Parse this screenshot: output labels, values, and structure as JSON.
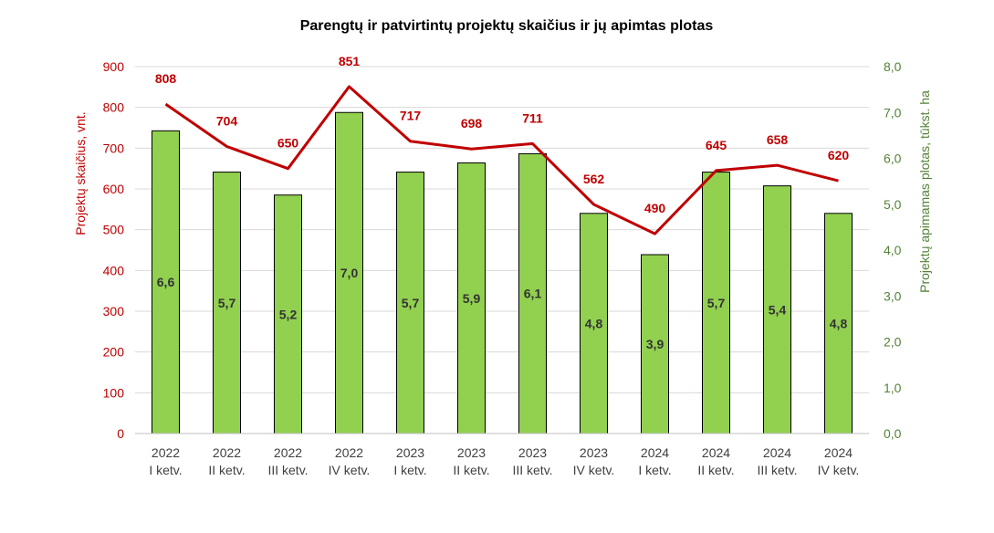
{
  "chart_data": {
    "type": "bar+line",
    "title": "Parengtų ir patvirtintų projektų skaičius ir jų apimtas plotas",
    "categories": [
      [
        "2022",
        "I ketv."
      ],
      [
        "2022",
        "II ketv."
      ],
      [
        "2022",
        "III ketv."
      ],
      [
        "2022",
        "IV ketv."
      ],
      [
        "2023",
        "I ketv."
      ],
      [
        "2023",
        "II ketv."
      ],
      [
        "2023",
        "III ketv."
      ],
      [
        "2023",
        "IV ketv."
      ],
      [
        "2024",
        "I ketv."
      ],
      [
        "2024",
        "II ketv."
      ],
      [
        "2024",
        "III ketv."
      ],
      [
        "2024",
        "IV ketv."
      ]
    ],
    "left_axis": {
      "label": "Projektų skaičius, vnt.",
      "ylim": [
        0,
        900
      ],
      "ticks": [
        "0",
        "100",
        "200",
        "300",
        "400",
        "500",
        "600",
        "700",
        "800",
        "900"
      ]
    },
    "right_axis": {
      "label": "Projektų apimamas plotas, tūkst. ha",
      "ylim": [
        0,
        8
      ],
      "ticks": [
        "0,0",
        "1,0",
        "2,0",
        "3,0",
        "4,0",
        "5,0",
        "6,0",
        "7,0",
        "8,0"
      ]
    },
    "series": [
      {
        "type": "line",
        "axis": "left",
        "values": [
          808,
          704,
          650,
          851,
          717,
          698,
          711,
          562,
          490,
          645,
          658,
          620
        ],
        "labels": [
          "808",
          "704",
          "650",
          "851",
          "717",
          "698",
          "711",
          "562",
          "490",
          "645",
          "658",
          "620"
        ],
        "color": "#c00000"
      },
      {
        "type": "bar",
        "axis": "right",
        "values": [
          6.6,
          5.7,
          5.2,
          7.0,
          5.7,
          5.9,
          6.1,
          4.8,
          3.9,
          5.7,
          5.4,
          4.8
        ],
        "labels": [
          "6,6",
          "5,7",
          "5,2",
          "7,0",
          "5,7",
          "5,9",
          "6,1",
          "4,8",
          "3,9",
          "5,7",
          "5,4",
          "4,8"
        ],
        "color": "#92d050"
      }
    ],
    "grid": true,
    "legend": "none"
  }
}
